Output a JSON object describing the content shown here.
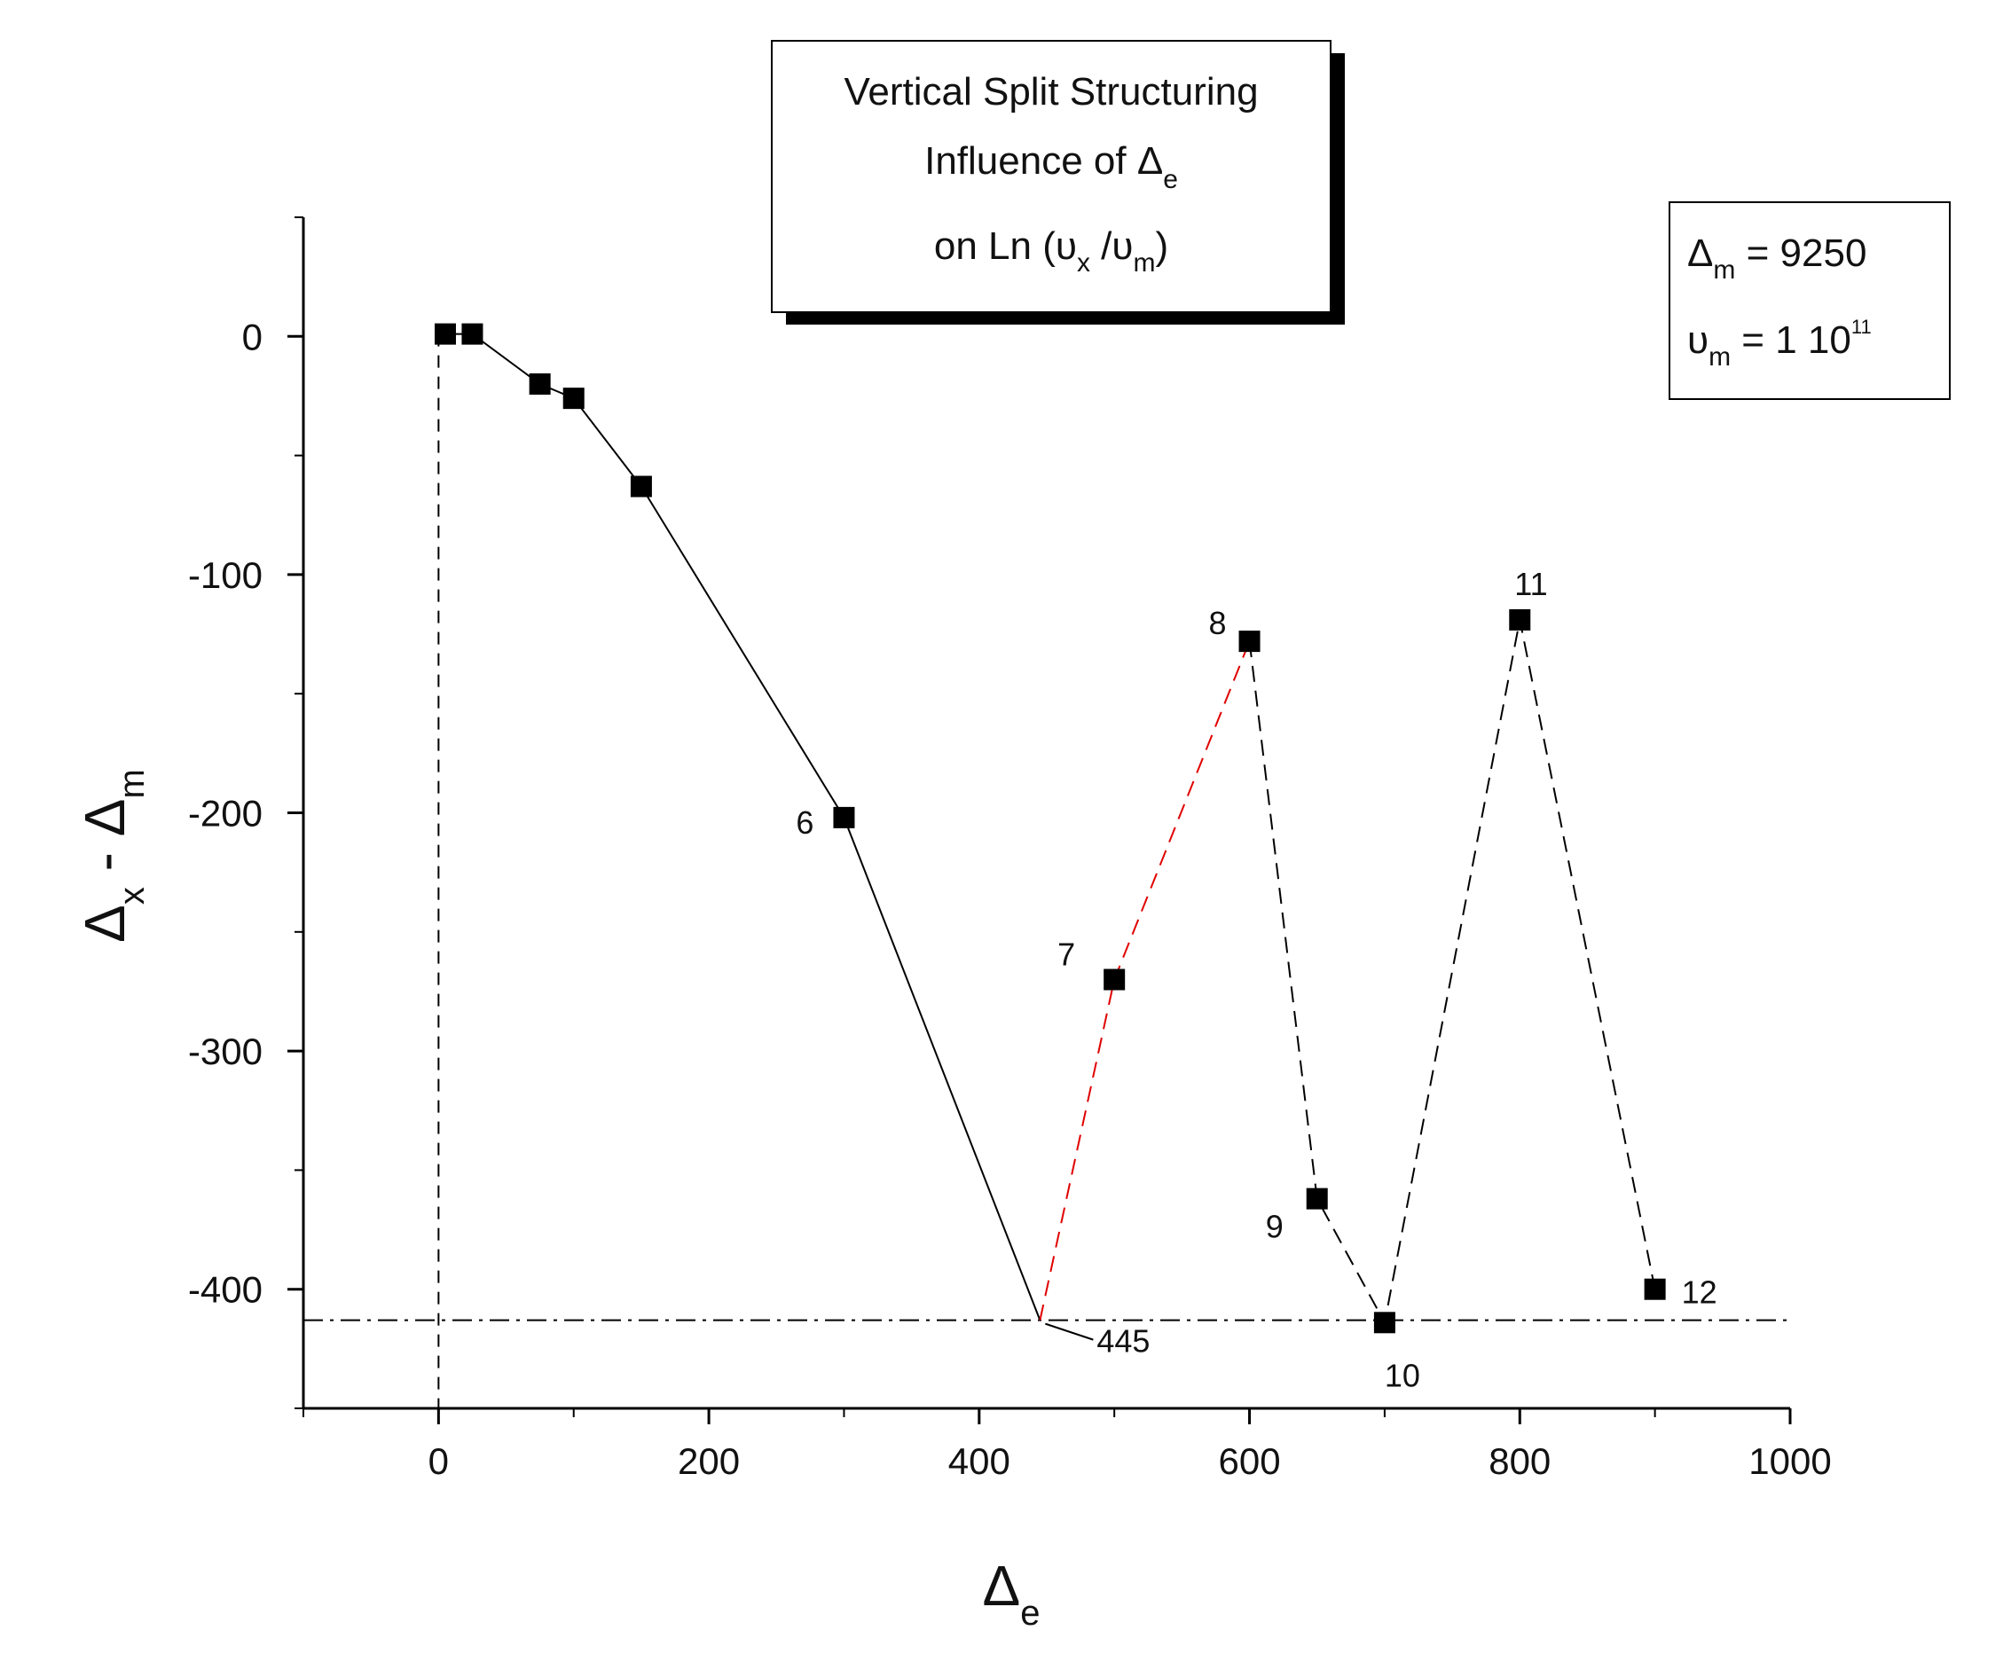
{
  "chart_data": {
    "type": "scatter",
    "xlim": [
      -100,
      1000
    ],
    "ylim": [
      -450,
      50
    ],
    "x_ticks": [
      0,
      200,
      400,
      600,
      800,
      1000
    ],
    "x_tick_labels": [
      "0",
      "200",
      "400",
      "600",
      "800",
      "1000"
    ],
    "y_ticks": [
      0,
      -100,
      -200,
      -300,
      -400
    ],
    "y_tick_labels": [
      "0",
      "-100",
      "-200",
      "-300",
      "-400"
    ],
    "xlabel": {
      "main": "Δ",
      "sub": "e"
    },
    "ylabel": {
      "a": "Δ",
      "a_sub": "x",
      "sep": " - ",
      "b": "Δ",
      "b_sub": "m"
    },
    "grid": false,
    "title_box": {
      "line1": "Vertical Split Structuring",
      "line2_main": "Influence of Δ",
      "line2_sub": "e",
      "line3_a": "on Ln (υ",
      "line3_a_sub": "x",
      "line3_b": " /υ",
      "line3_b_sub": "m",
      "line3_c": ")"
    },
    "param_box": {
      "row1_main": "Δ",
      "row1_sub": "m",
      "row1_value": " = 9250",
      "row2_main": "υ",
      "row2_sub": "m",
      "row2_value": " = 1 10",
      "row2_sup": "11"
    },
    "series": [
      {
        "marker": "square",
        "color": "#000000",
        "points": [
          {
            "x": 5,
            "y": 1,
            "label": ""
          },
          {
            "x": 25,
            "y": 1,
            "label": ""
          },
          {
            "x": 75,
            "y": -20,
            "label": ""
          },
          {
            "x": 100,
            "y": -26,
            "label": ""
          },
          {
            "x": 150,
            "y": -63,
            "label": ""
          },
          {
            "x": 300,
            "y": -202,
            "label": "6"
          },
          {
            "x": 500,
            "y": -270,
            "label": "7"
          },
          {
            "x": 600,
            "y": -128,
            "label": "8"
          },
          {
            "x": 650,
            "y": -362,
            "label": "9"
          },
          {
            "x": 700,
            "y": -414,
            "label": "10"
          },
          {
            "x": 800,
            "y": -119,
            "label": "11"
          },
          {
            "x": 900,
            "y": -400,
            "label": "12"
          }
        ]
      }
    ],
    "lines": [
      {
        "style": "solid",
        "color": "#000000",
        "points": [
          [
            5,
            1
          ],
          [
            25,
            1
          ],
          [
            75,
            -20
          ],
          [
            100,
            -26
          ],
          [
            150,
            -63
          ],
          [
            300,
            -202
          ],
          [
            445,
            -413
          ]
        ]
      },
      {
        "style": "dashed",
        "color": "#e00000",
        "points": [
          [
            445,
            -413
          ],
          [
            500,
            -270
          ],
          [
            600,
            -128
          ]
        ]
      },
      {
        "style": "dashed",
        "color": "#000000",
        "points": [
          [
            600,
            -128
          ],
          [
            650,
            -362
          ],
          [
            700,
            -414
          ],
          [
            800,
            -119
          ],
          [
            900,
            -400
          ]
        ]
      }
    ],
    "reference_lines": [
      {
        "orientation": "vertical",
        "x": 0,
        "style": "dashed"
      },
      {
        "orientation": "horizontal",
        "y": -413,
        "style": "dashdot"
      }
    ],
    "annotations": [
      {
        "text": "445",
        "x": 445,
        "y": -413
      }
    ]
  }
}
